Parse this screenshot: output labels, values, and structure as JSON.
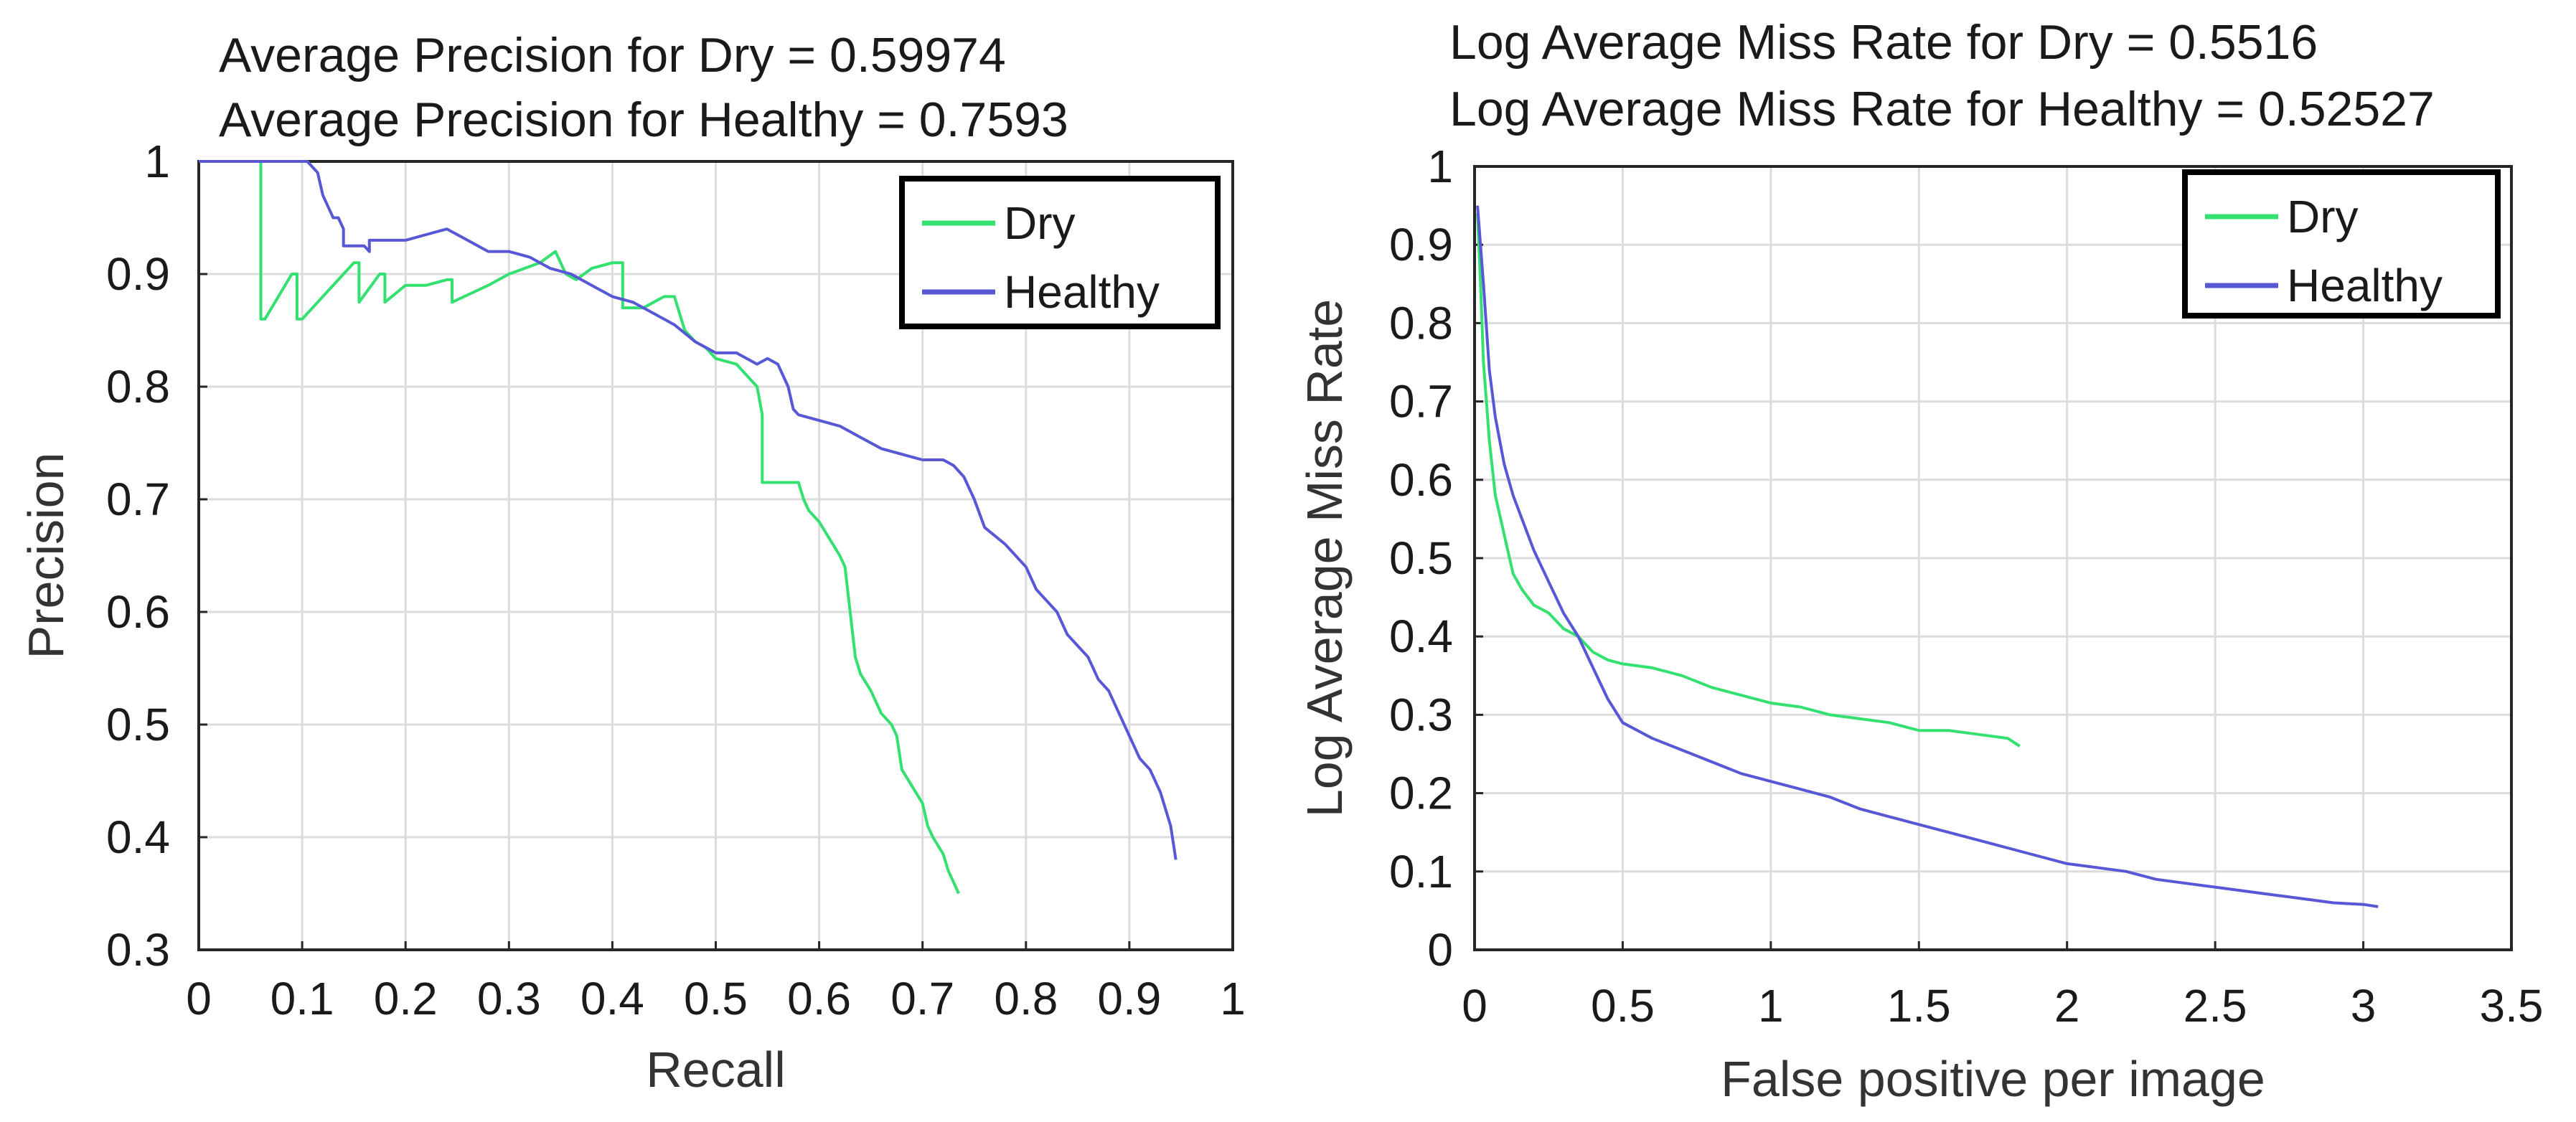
{
  "chart_data": [
    {
      "type": "line",
      "titles": [
        "Average Precision for Dry = 0.59974",
        "Average Precision for Healthy = 0.7593"
      ],
      "xlabel": "Recall",
      "ylabel": "Precision",
      "xlim": [
        0,
        1
      ],
      "ylim": [
        0.3,
        1
      ],
      "xticks": [
        0,
        0.1,
        0.2,
        0.3,
        0.4,
        0.5,
        0.6,
        0.7,
        0.8,
        0.9,
        1
      ],
      "xtick_labels": [
        "0",
        "0.1",
        "0.2",
        "0.3",
        "0.4",
        "0.5",
        "0.6",
        "0.7",
        "0.8",
        "0.9",
        "1"
      ],
      "yticks": [
        0.3,
        0.4,
        0.5,
        0.6,
        0.7,
        0.8,
        0.9,
        1
      ],
      "ytick_labels": [
        "0.3",
        "0.4",
        "0.5",
        "0.6",
        "0.7",
        "0.8",
        "0.9",
        "1"
      ],
      "grid": true,
      "legend_position": "top-right",
      "series": [
        {
          "name": "Dry",
          "color": "#33e070",
          "x": [
            0,
            0.06,
            0.06,
            0.064,
            0.09,
            0.095,
            0.095,
            0.1,
            0.15,
            0.155,
            0.155,
            0.175,
            0.18,
            0.18,
            0.2,
            0.22,
            0.24,
            0.245,
            0.245,
            0.28,
            0.3,
            0.33,
            0.345,
            0.355,
            0.365,
            0.38,
            0.4,
            0.41,
            0.41,
            0.43,
            0.45,
            0.46,
            0.47,
            0.48,
            0.49,
            0.5,
            0.52,
            0.53,
            0.54,
            0.545,
            0.545,
            0.56,
            0.58,
            0.585,
            0.59,
            0.6,
            0.61,
            0.62,
            0.625,
            0.63,
            0.635,
            0.64,
            0.65,
            0.655,
            0.66,
            0.67,
            0.675,
            0.68,
            0.69,
            0.7,
            0.705,
            0.71,
            0.72,
            0.725,
            0.73,
            0.735
          ],
          "y": [
            1,
            1,
            0.86,
            0.86,
            0.9,
            0.9,
            0.86,
            0.86,
            0.91,
            0.91,
            0.875,
            0.9,
            0.9,
            0.875,
            0.89,
            0.89,
            0.895,
            0.895,
            0.875,
            0.89,
            0.9,
            0.91,
            0.92,
            0.9,
            0.895,
            0.905,
            0.91,
            0.91,
            0.87,
            0.87,
            0.88,
            0.88,
            0.85,
            0.84,
            0.835,
            0.825,
            0.82,
            0.81,
            0.8,
            0.775,
            0.715,
            0.715,
            0.715,
            0.7,
            0.69,
            0.68,
            0.665,
            0.65,
            0.64,
            0.6,
            0.56,
            0.545,
            0.53,
            0.52,
            0.51,
            0.5,
            0.49,
            0.46,
            0.445,
            0.43,
            0.41,
            0.4,
            0.385,
            0.37,
            0.36,
            0.35
          ]
        },
        {
          "name": "Healthy",
          "color": "#5858d6",
          "x": [
            0,
            0.09,
            0.105,
            0.115,
            0.12,
            0.125,
            0.13,
            0.135,
            0.14,
            0.14,
            0.16,
            0.165,
            0.165,
            0.2,
            0.22,
            0.24,
            0.26,
            0.28,
            0.3,
            0.32,
            0.34,
            0.36,
            0.38,
            0.4,
            0.42,
            0.44,
            0.46,
            0.48,
            0.5,
            0.52,
            0.54,
            0.55,
            0.56,
            0.57,
            0.575,
            0.58,
            0.6,
            0.62,
            0.64,
            0.66,
            0.68,
            0.7,
            0.72,
            0.73,
            0.74,
            0.75,
            0.76,
            0.78,
            0.79,
            0.8,
            0.81,
            0.82,
            0.83,
            0.84,
            0.85,
            0.86,
            0.87,
            0.88,
            0.89,
            0.9,
            0.91,
            0.92,
            0.93,
            0.94,
            0.945
          ],
          "y": [
            1,
            1,
            1,
            0.99,
            0.97,
            0.96,
            0.95,
            0.95,
            0.94,
            0.925,
            0.925,
            0.92,
            0.93,
            0.93,
            0.935,
            0.94,
            0.93,
            0.92,
            0.92,
            0.915,
            0.905,
            0.9,
            0.89,
            0.88,
            0.875,
            0.865,
            0.855,
            0.84,
            0.83,
            0.83,
            0.82,
            0.825,
            0.82,
            0.8,
            0.78,
            0.775,
            0.77,
            0.765,
            0.755,
            0.745,
            0.74,
            0.735,
            0.735,
            0.73,
            0.72,
            0.7,
            0.675,
            0.66,
            0.65,
            0.64,
            0.62,
            0.61,
            0.6,
            0.58,
            0.57,
            0.56,
            0.54,
            0.53,
            0.51,
            0.49,
            0.47,
            0.46,
            0.44,
            0.41,
            0.38
          ]
        }
      ]
    },
    {
      "type": "line",
      "titles": [
        "Log Average Miss Rate for Dry = 0.5516",
        "Log Average Miss Rate for Healthy = 0.52527"
      ],
      "xlabel": "False positive per image",
      "ylabel": "Log Average Miss Rate",
      "xlim": [
        0,
        3.5
      ],
      "ylim": [
        0,
        1
      ],
      "xticks": [
        0,
        0.5,
        1,
        1.5,
        2,
        2.5,
        3,
        3.5
      ],
      "xtick_labels": [
        "0",
        "0.5",
        "1",
        "1.5",
        "2",
        "2.5",
        "3",
        "3.5"
      ],
      "yticks": [
        0,
        0.1,
        0.2,
        0.3,
        0.4,
        0.5,
        0.6,
        0.7,
        0.8,
        0.9,
        1
      ],
      "ytick_labels": [
        "0",
        "0.1",
        "0.2",
        "0.3",
        "0.4",
        "0.5",
        "0.6",
        "0.7",
        "0.8",
        "0.9",
        "1"
      ],
      "grid": true,
      "legend_position": "top-right",
      "series": [
        {
          "name": "Dry",
          "color": "#33e070",
          "x": [
            0.01,
            0.02,
            0.03,
            0.05,
            0.07,
            0.1,
            0.13,
            0.16,
            0.2,
            0.25,
            0.3,
            0.35,
            0.4,
            0.45,
            0.5,
            0.6,
            0.7,
            0.8,
            0.9,
            1.0,
            1.1,
            1.2,
            1.3,
            1.4,
            1.5,
            1.6,
            1.7,
            1.8,
            1.84
          ],
          "y": [
            0.94,
            0.85,
            0.75,
            0.65,
            0.58,
            0.53,
            0.48,
            0.46,
            0.44,
            0.43,
            0.41,
            0.4,
            0.38,
            0.37,
            0.365,
            0.36,
            0.35,
            0.335,
            0.325,
            0.315,
            0.31,
            0.3,
            0.295,
            0.29,
            0.28,
            0.28,
            0.275,
            0.27,
            0.26
          ]
        },
        {
          "name": "Healthy",
          "color": "#5858d6",
          "x": [
            0.01,
            0.03,
            0.05,
            0.07,
            0.1,
            0.13,
            0.16,
            0.2,
            0.25,
            0.3,
            0.35,
            0.4,
            0.45,
            0.5,
            0.6,
            0.7,
            0.8,
            0.9,
            1.0,
            1.1,
            1.2,
            1.3,
            1.4,
            1.5,
            1.6,
            1.7,
            1.8,
            1.9,
            2.0,
            2.1,
            2.2,
            2.3,
            2.4,
            2.5,
            2.6,
            2.7,
            2.8,
            2.9,
            3.0,
            3.05
          ],
          "y": [
            0.95,
            0.85,
            0.74,
            0.68,
            0.62,
            0.58,
            0.55,
            0.51,
            0.47,
            0.43,
            0.4,
            0.36,
            0.32,
            0.29,
            0.27,
            0.255,
            0.24,
            0.225,
            0.215,
            0.205,
            0.195,
            0.18,
            0.17,
            0.16,
            0.15,
            0.14,
            0.13,
            0.12,
            0.11,
            0.105,
            0.1,
            0.09,
            0.085,
            0.08,
            0.075,
            0.07,
            0.065,
            0.06,
            0.058,
            0.055
          ]
        }
      ]
    }
  ]
}
